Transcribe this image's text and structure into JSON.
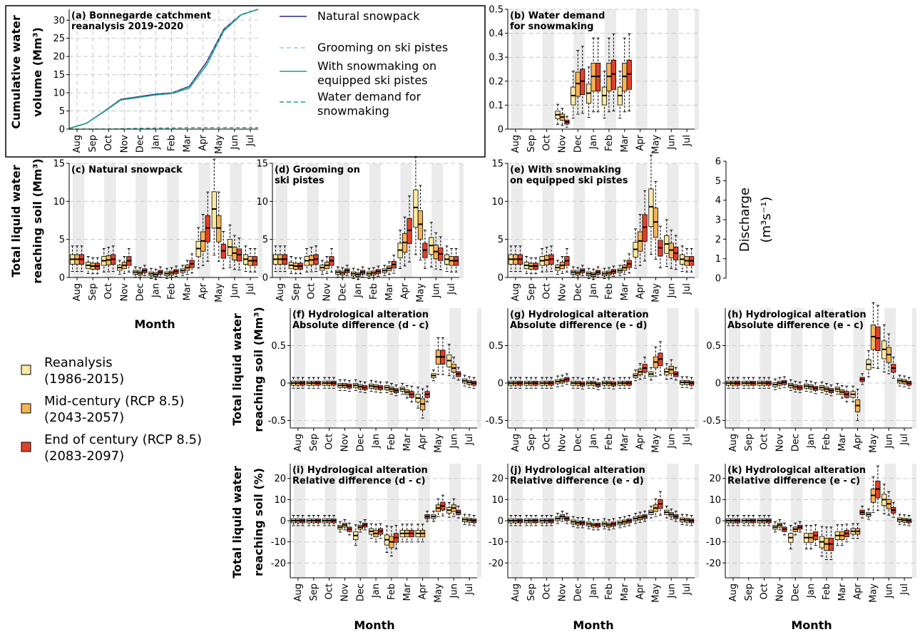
{
  "months": [
    "Aug",
    "Sep",
    "Oct",
    "Nov",
    "Dec",
    "Jan",
    "Feb",
    "Mar",
    "Apr",
    "May",
    "Jun",
    "Jul"
  ],
  "colors": {
    "reanalysis": "#fce9a4",
    "mid": "#f5b357",
    "end": "#e2402a",
    "stripe": "#ebebeb",
    "grid": "#c8c8c8",
    "natural": "#2b2a7e",
    "grooming": "#8fd3ea",
    "snowmaking": "#1f9f8a",
    "demand": "#1f9f8a"
  },
  "labels": {
    "month": "Month",
    "ylab_a": "Cumulative water volume (Mm³)",
    "ylab_a_l1": "Cumulative water",
    "ylab_a_l2": "volume (Mm³)",
    "ylab_c_l1": "Total liquid water",
    "ylab_c_l2": "reaching soil (Mm³)",
    "ylab_f_l1": "Total liquid water",
    "ylab_f_l2": "reaching soil (Mm³)",
    "ylab_i_l1": "Total liquid water",
    "ylab_i_l2": "reaching soil (%)",
    "discharge_l1": "Discharge",
    "discharge_l2": "(m³s⁻¹)"
  },
  "legend_lines": [
    {
      "label": "Natural snowpack",
      "style": "solid",
      "color_key": "natural"
    },
    {
      "label": "Grooming on ski pistes",
      "style": "dashed",
      "color_key": "grooming"
    },
    {
      "label": "With snowmaking on equipped ski pistes",
      "l1": "With snowmaking on",
      "l2": "equipped ski pistes",
      "style": "solid",
      "color_key": "snowmaking"
    },
    {
      "label": "Water demand for snowmaking",
      "l1": "Water demand for",
      "l2": "snowmaking",
      "style": "dashed",
      "color_key": "demand"
    }
  ],
  "legend_periods": [
    {
      "l1": "Reanalysis",
      "l2": "(1986-2015)",
      "color_key": "reanalysis"
    },
    {
      "l1": "Mid-century (RCP 8.5)",
      "l2": "(2043-2057)",
      "color_key": "mid"
    },
    {
      "l1": "End of century (RCP 8.5)",
      "l2": "(2083-2097)",
      "color_key": "end"
    }
  ],
  "chart_data": [
    {
      "id": "a",
      "type": "line",
      "title_l1": "(a) Bonnegarde catchment",
      "title_l2": "reanalysis 2019-2020",
      "ylabel": "Cumulative water volume (Mm³)",
      "ylim": [
        0,
        33
      ],
      "yticks": [
        0,
        5,
        10,
        15,
        20,
        25,
        30
      ],
      "x": [
        "Aug",
        "Sep",
        "Oct",
        "Nov",
        "Dec",
        "Jan",
        "Feb",
        "Mar",
        "Apr",
        "May",
        "Jun",
        "Jul"
      ],
      "series": [
        {
          "name": "Natural snowpack",
          "values": [
            0.2,
            1.6,
            4.8,
            8.2,
            8.9,
            9.6,
            10.0,
            11.8,
            18.5,
            27.5,
            31.5,
            33.0
          ]
        },
        {
          "name": "Grooming on ski pistes",
          "values": [
            0.2,
            1.6,
            4.7,
            8.0,
            8.7,
            9.4,
            9.9,
            11.5,
            18.0,
            27.2,
            31.5,
            33.0
          ]
        },
        {
          "name": "With snowmaking on equipped ski pistes",
          "values": [
            0.2,
            1.6,
            4.7,
            8.0,
            8.7,
            9.4,
            9.8,
            11.3,
            17.6,
            27.0,
            31.4,
            33.0
          ]
        },
        {
          "name": "Water demand for snowmaking",
          "values": [
            0,
            0,
            0,
            0.1,
            0.2,
            0.3,
            0.3,
            0.4,
            0.4,
            0.4,
            0.4,
            0.4
          ]
        }
      ]
    },
    {
      "id": "b",
      "type": "box",
      "title_l1": "(b) Water demand",
      "title_l2": "for snowmaking",
      "ylim": [
        0,
        0.5
      ],
      "yticks": [
        0.0,
        0.1,
        0.2,
        0.3,
        0.4,
        0.5
      ],
      "medians": {
        "reanalysis": [
          null,
          null,
          null,
          0.06,
          0.14,
          0.15,
          0.14,
          0.14,
          null,
          null,
          null,
          null
        ],
        "mid": [
          null,
          null,
          null,
          0.05,
          0.19,
          0.22,
          0.22,
          0.22,
          null,
          null,
          null,
          null
        ],
        "end": [
          null,
          null,
          null,
          0.03,
          0.2,
          0.22,
          0.23,
          0.23,
          null,
          null,
          null,
          null
        ]
      }
    },
    {
      "id": "c",
      "type": "box",
      "title_l1": "(c) Natural snowpack",
      "title_l2": "",
      "ylim": [
        0,
        15
      ],
      "yticks": [
        0,
        5,
        10,
        15
      ],
      "medians": {
        "reanalysis": [
          2.4,
          1.6,
          2.2,
          1.3,
          0.7,
          0.5,
          0.5,
          0.9,
          3.8,
          9.0,
          4.0,
          2.4
        ],
        "mid": [
          2.4,
          1.5,
          2.3,
          1.6,
          0.6,
          0.4,
          0.6,
          1.3,
          4.8,
          6.5,
          3.2,
          2.2
        ],
        "end": [
          2.4,
          1.5,
          2.4,
          2.2,
          0.9,
          0.7,
          0.8,
          1.8,
          6.5,
          3.5,
          3.0,
          2.2
        ]
      }
    },
    {
      "id": "d",
      "type": "box",
      "title_l1": "(d) Grooming on",
      "title_l2": "ski pistes",
      "ylim": [
        0,
        15
      ],
      "yticks": [
        0,
        5,
        10,
        15
      ],
      "medians": {
        "reanalysis": [
          2.4,
          1.6,
          2.2,
          1.3,
          0.7,
          0.5,
          0.5,
          0.9,
          3.6,
          9.2,
          4.2,
          2.4
        ],
        "mid": [
          2.4,
          1.5,
          2.3,
          1.6,
          0.6,
          0.4,
          0.6,
          1.2,
          4.6,
          7.0,
          3.4,
          2.2
        ],
        "end": [
          2.4,
          1.5,
          2.4,
          2.2,
          0.9,
          0.7,
          0.8,
          1.7,
          6.2,
          3.6,
          3.1,
          2.2
        ]
      }
    },
    {
      "id": "e",
      "type": "box",
      "title_l1": "(e) With snowmaking",
      "title_l2": "on equipped ski pistes",
      "ylim": [
        0,
        15
      ],
      "yticks": [
        0,
        5,
        10,
        15
      ],
      "medians": {
        "reanalysis": [
          2.4,
          1.6,
          2.2,
          1.3,
          0.7,
          0.5,
          0.5,
          0.9,
          3.7,
          9.3,
          4.4,
          2.4
        ],
        "mid": [
          2.4,
          1.5,
          2.3,
          1.6,
          0.6,
          0.4,
          0.6,
          1.3,
          4.8,
          7.3,
          3.6,
          2.2
        ],
        "end": [
          2.4,
          1.5,
          2.4,
          2.2,
          0.9,
          0.7,
          0.8,
          1.8,
          6.6,
          3.9,
          3.2,
          2.2
        ]
      }
    },
    {
      "id": "f",
      "type": "box",
      "title_l1": "(f) Hydrological alteration",
      "title_l2": "Absolute difference (d - c)",
      "ylim": [
        -0.6,
        1.0
      ],
      "yticks": [
        -0.5,
        0.0,
        0.5
      ],
      "medians": {
        "reanalysis": [
          0,
          0,
          0,
          -0.03,
          -0.03,
          -0.04,
          -0.06,
          -0.08,
          -0.2,
          0.1,
          0.3,
          0.03
        ],
        "mid": [
          0,
          0,
          0,
          -0.03,
          -0.05,
          -0.05,
          -0.08,
          -0.12,
          -0.28,
          0.35,
          0.2,
          0.01
        ],
        "end": [
          0,
          0,
          0,
          -0.04,
          -0.06,
          -0.06,
          -0.1,
          -0.15,
          -0.15,
          0.35,
          0.12,
          0.0
        ]
      }
    },
    {
      "id": "g",
      "type": "box",
      "title_l1": "(g) Hydrological alteration",
      "title_l2": "Absolute difference (e - d)",
      "ylim": [
        -0.6,
        1.0
      ],
      "yticks": [
        -0.5,
        0.0,
        0.5
      ],
      "medians": {
        "reanalysis": [
          0,
          0,
          0,
          0.02,
          0,
          0,
          0,
          0,
          0.1,
          0.12,
          0.15,
          0.01
        ],
        "mid": [
          0,
          0,
          0,
          0.03,
          0,
          0,
          0,
          0,
          0.15,
          0.28,
          0.18,
          0.01
        ],
        "end": [
          0,
          0,
          0,
          0.05,
          -0.01,
          -0.02,
          -0.01,
          0,
          0.2,
          0.32,
          0.12,
          0.0
        ]
      }
    },
    {
      "id": "h",
      "type": "box",
      "title_l1": "(h) Hydrological alteration",
      "title_l2": "Absolute difference (e - c)",
      "ylim": [
        -0.6,
        1.0
      ],
      "yticks": [
        -0.5,
        0.0,
        0.5
      ],
      "medians": {
        "reanalysis": [
          0,
          0,
          0,
          -0.02,
          -0.03,
          -0.04,
          -0.06,
          -0.08,
          -0.15,
          0.25,
          0.45,
          0.03
        ],
        "mid": [
          0,
          0,
          0,
          0.0,
          -0.05,
          -0.05,
          -0.08,
          -0.12,
          -0.3,
          0.62,
          0.38,
          0.02
        ],
        "end": [
          0,
          0,
          0,
          0.01,
          -0.06,
          -0.07,
          -0.1,
          -0.15,
          0.05,
          0.6,
          0.2,
          0.0
        ]
      }
    },
    {
      "id": "i",
      "type": "box",
      "title_l1": "(i) Hydrological alteration",
      "title_l2": "Relative difference (d - c)",
      "ylim": [
        -27,
        27
      ],
      "yticks": [
        -20,
        -10,
        0,
        10,
        20
      ],
      "medians": {
        "reanalysis": [
          0,
          0,
          0,
          -3,
          -7,
          -5,
          -9,
          -6,
          -6,
          2,
          5,
          0.5
        ],
        "mid": [
          0,
          0,
          0,
          -2,
          -3,
          -6,
          -10,
          -6,
          -6,
          6,
          6,
          0.3
        ],
        "end": [
          0,
          0,
          0,
          -4,
          -2,
          -5,
          -8,
          -6,
          2,
          7,
          4,
          0
        ]
      }
    },
    {
      "id": "j",
      "type": "box",
      "title_l1": "(j) Hydrological alteration",
      "title_l2": "Relative difference (e - d)",
      "ylim": [
        -27,
        27
      ],
      "yticks": [
        -20,
        -10,
        0,
        10,
        20
      ],
      "medians": {
        "reanalysis": [
          0,
          0,
          0,
          1,
          -0.5,
          -1.5,
          -1.5,
          -1,
          1,
          4,
          4,
          0.5
        ],
        "mid": [
          0,
          0,
          0,
          2,
          -1,
          -2,
          -2,
          -0.5,
          1.5,
          6,
          3,
          0.3
        ],
        "end": [
          0,
          0,
          0,
          1,
          -1,
          -2,
          -1.5,
          0,
          2,
          8,
          2,
          0
        ]
      }
    },
    {
      "id": "k",
      "type": "box",
      "title_l1": "(k) Hydrological alteration",
      "title_l2": "Relative difference (e - c)",
      "ylim": [
        -27,
        27
      ],
      "yticks": [
        -20,
        -10,
        0,
        10,
        20
      ],
      "medians": {
        "reanalysis": [
          0,
          0,
          0,
          -3,
          -8,
          -8,
          -10,
          -7,
          -5,
          3,
          10,
          0.5
        ],
        "mid": [
          0,
          0,
          0,
          -2,
          -4,
          -8,
          -11,
          -7,
          -5,
          12,
          8,
          0.3
        ],
        "end": [
          0,
          0,
          0,
          -4,
          -3,
          -7,
          -11,
          -6,
          4,
          15,
          5,
          0
        ]
      }
    },
    {
      "id": "discharge",
      "type": "axis",
      "ylabel": "Discharge (m³s⁻¹)",
      "ylim": [
        0,
        6
      ],
      "yticks": [
        0,
        1,
        2,
        3,
        4,
        5,
        6
      ]
    }
  ]
}
